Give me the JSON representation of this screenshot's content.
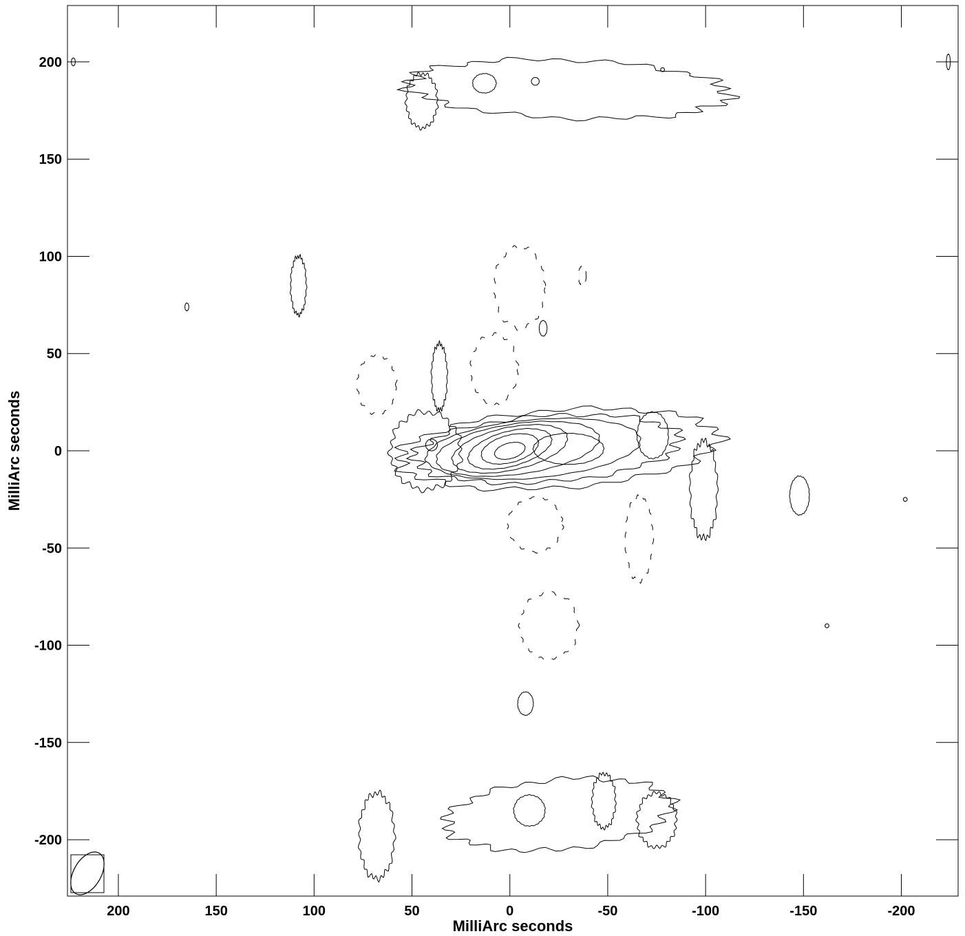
{
  "chart_data": {
    "type": "contour",
    "xlabel": "MilliArc seconds",
    "ylabel": "MilliArc seconds",
    "xlim": [
      226,
      -229
    ],
    "ylim": [
      -229,
      229
    ],
    "x_ticks": [
      200,
      150,
      100,
      50,
      0,
      -50,
      -100,
      -150,
      -200
    ],
    "y_ticks": [
      200,
      150,
      100,
      50,
      0,
      -50,
      -100,
      -150,
      -200
    ],
    "x_tick_labels": [
      "200",
      "150",
      "100",
      "50",
      "0",
      "-50",
      "-100",
      "-150",
      "-200"
    ],
    "y_tick_labels": [
      "200",
      "150",
      "100",
      "50",
      "0",
      "-50",
      "-100",
      "-150",
      "-200"
    ],
    "core": {
      "x": 0,
      "y": 0,
      "contours": [
        {
          "x": -25,
          "y": 1,
          "rx": 82,
          "ry": 20,
          "angle": 4
        },
        {
          "x": -19,
          "y": 1,
          "rx": 68,
          "ry": 17,
          "angle": 4
        },
        {
          "x": -12,
          "y": 1,
          "rx": 55,
          "ry": 15,
          "angle": 5
        },
        {
          "x": -4,
          "y": 1,
          "rx": 42,
          "ry": 13,
          "angle": 8
        },
        {
          "x": 0,
          "y": 1,
          "rx": 30,
          "ry": 11,
          "angle": 12
        },
        {
          "x": 0,
          "y": 1,
          "rx": 22,
          "ry": 9,
          "angle": 15
        },
        {
          "x": 0,
          "y": 1,
          "rx": 15,
          "ry": 7,
          "angle": 15
        },
        {
          "x": 0,
          "y": 0,
          "rx": 8,
          "ry": 4,
          "angle": 15
        }
      ],
      "inner_knot": {
        "x": -30,
        "y": 1,
        "rx": 18,
        "ry": 8
      }
    },
    "features": [
      {
        "name": "north-lobe",
        "x": -30,
        "y": 186,
        "rx": 82,
        "ry": 15,
        "angle": -2
      },
      {
        "name": "north-lobe-knot",
        "x": 13,
        "y": 189,
        "rx": 6,
        "ry": 5,
        "angle": 0
      },
      {
        "name": "north-lobe-knot-small",
        "x": -13,
        "y": 190,
        "rx": 2,
        "ry": 2,
        "angle": 0
      },
      {
        "name": "north-lobe-west-fringe",
        "x": 45,
        "y": 180,
        "rx": 8,
        "ry": 14,
        "angle": 0
      },
      {
        "name": "south-lobe",
        "x": -25,
        "y": -187,
        "rx": 58,
        "ry": 18,
        "angle": 5
      },
      {
        "name": "south-lobe-knot",
        "x": -10,
        "y": -185,
        "rx": 8,
        "ry": 8,
        "angle": 0
      },
      {
        "name": "south-lobe-east-fringe",
        "x": -48,
        "y": -180,
        "rx": 6,
        "ry": 14,
        "angle": 0
      },
      {
        "name": "southwest-blob",
        "x": 68,
        "y": -198,
        "rx": 9,
        "ry": 22,
        "angle": 0
      },
      {
        "name": "south-east-blob",
        "x": -75,
        "y": -190,
        "rx": 10,
        "ry": 14,
        "angle": 0
      },
      {
        "name": "west-knot",
        "x": 43,
        "y": 0,
        "rx": 18,
        "ry": 20,
        "angle": 0
      },
      {
        "name": "west-knot-inner",
        "x": 40,
        "y": 3,
        "rx": 3,
        "ry": 3,
        "angle": 0
      },
      {
        "name": "upper-west-blob",
        "x": 36,
        "y": 38,
        "rx": 4,
        "ry": 17,
        "angle": 0
      },
      {
        "name": "east-fringe",
        "x": -73,
        "y": 8,
        "rx": 8,
        "ry": 12,
        "angle": 0
      },
      {
        "name": "blob-108",
        "x": 108,
        "y": 85,
        "rx": 4,
        "ry": 15,
        "angle": 0
      },
      {
        "name": "blob-east-100",
        "x": -99,
        "y": -20,
        "rx": 7,
        "ry": 25,
        "angle": 0
      },
      {
        "name": "blob-east-150",
        "x": -148,
        "y": -23,
        "rx": 5,
        "ry": 10,
        "angle": 0
      },
      {
        "name": "blob-south-10",
        "x": -8,
        "y": -130,
        "rx": 4,
        "ry": 6,
        "angle": 0
      },
      {
        "name": "blob-north-17",
        "x": -17,
        "y": 63,
        "rx": 2,
        "ry": 4,
        "angle": 0
      },
      {
        "name": "dot-165-74",
        "x": 165,
        "y": 74,
        "rx": 1,
        "ry": 2,
        "angle": 0
      },
      {
        "name": "dot-corner-ul",
        "x": 223,
        "y": 200,
        "rx": 1,
        "ry": 2,
        "angle": 0
      },
      {
        "name": "dot-corner-ur",
        "x": -224,
        "y": 200,
        "rx": 1,
        "ry": 4,
        "angle": 0
      },
      {
        "name": "dot-east-200",
        "x": -202,
        "y": -25,
        "rx": 1,
        "ry": 1,
        "angle": 0
      },
      {
        "name": "dot-east-162",
        "x": -162,
        "y": -90,
        "rx": 1,
        "ry": 1,
        "angle": 0
      },
      {
        "name": "dot-north-78",
        "x": -78,
        "y": 196,
        "rx": 1,
        "ry": 1,
        "angle": 0
      }
    ],
    "negative_contours": [
      {
        "name": "dashed-ring-n",
        "x": -5,
        "y": 84,
        "rx": 13,
        "ry": 21
      },
      {
        "name": "dashed-ring-ne",
        "x": 8,
        "y": 42,
        "rx": 12,
        "ry": 18
      },
      {
        "name": "dashed-ring-w",
        "x": 68,
        "y": 34,
        "rx": 10,
        "ry": 15
      },
      {
        "name": "dashed-ring-s",
        "x": -13,
        "y": -38,
        "rx": 14,
        "ry": 14
      },
      {
        "name": "dashed-ring-se",
        "x": -66,
        "y": -45,
        "rx": 7,
        "ry": 22
      },
      {
        "name": "dashed-ring-south",
        "x": -20,
        "y": -90,
        "rx": 15,
        "ry": 17
      },
      {
        "name": "dashed-ring-ne2",
        "x": -37,
        "y": 90,
        "rx": 2,
        "ry": 5
      }
    ],
    "beam": {
      "major": 12,
      "minor": 7,
      "angle": 30
    }
  },
  "colors": {
    "contour": "#000000",
    "axis": "#000000",
    "background": "#ffffff"
  }
}
